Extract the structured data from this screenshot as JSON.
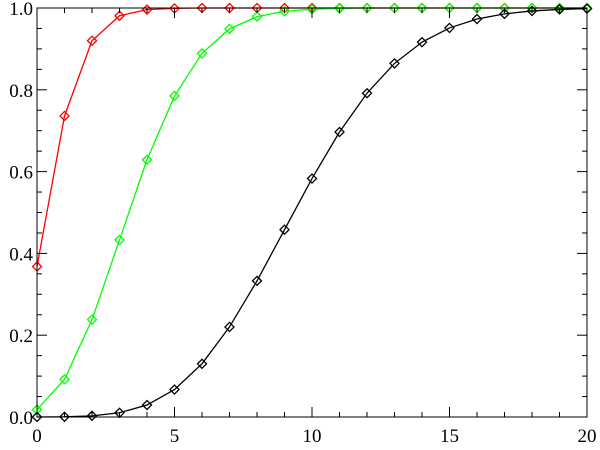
{
  "chart_data": {
    "type": "line",
    "title": "",
    "xlabel": "",
    "ylabel": "",
    "xlim": [
      0,
      20
    ],
    "ylim": [
      0,
      1
    ],
    "grid": false,
    "marker": "diamond",
    "x_ticks": [
      "0",
      "5",
      "10",
      "15",
      "20"
    ],
    "y_ticks": [
      "0.0",
      "0.2",
      "0.4",
      "0.6",
      "0.8",
      "1.0"
    ],
    "x": [
      0,
      1,
      2,
      3,
      4,
      5,
      6,
      7,
      8,
      9,
      10,
      11,
      12,
      13,
      14,
      15,
      16,
      17,
      18,
      19,
      20
    ],
    "series": [
      {
        "color": "#ff0000",
        "values": [
          0.368,
          0.736,
          0.92,
          0.981,
          0.996,
          0.999,
          1.0,
          1.0,
          1.0,
          1.0,
          1.0,
          1.0,
          1.0,
          1.0,
          1.0,
          1.0,
          1.0,
          1.0,
          1.0,
          1.0,
          1.0
        ]
      },
      {
        "color": "#00ff00",
        "values": [
          0.018,
          0.092,
          0.238,
          0.433,
          0.629,
          0.785,
          0.889,
          0.949,
          0.979,
          0.992,
          0.997,
          0.999,
          1.0,
          1.0,
          1.0,
          1.0,
          1.0,
          1.0,
          1.0,
          1.0,
          1.0
        ]
      },
      {
        "color": "#000000",
        "values": [
          0.0,
          0.0005,
          0.0028,
          0.0103,
          0.0293,
          0.0671,
          0.1301,
          0.2202,
          0.3328,
          0.4579,
          0.583,
          0.6968,
          0.7916,
          0.8645,
          0.9165,
          0.9513,
          0.973,
          0.9857,
          0.9928,
          0.9965,
          0.9984
        ]
      }
    ]
  }
}
